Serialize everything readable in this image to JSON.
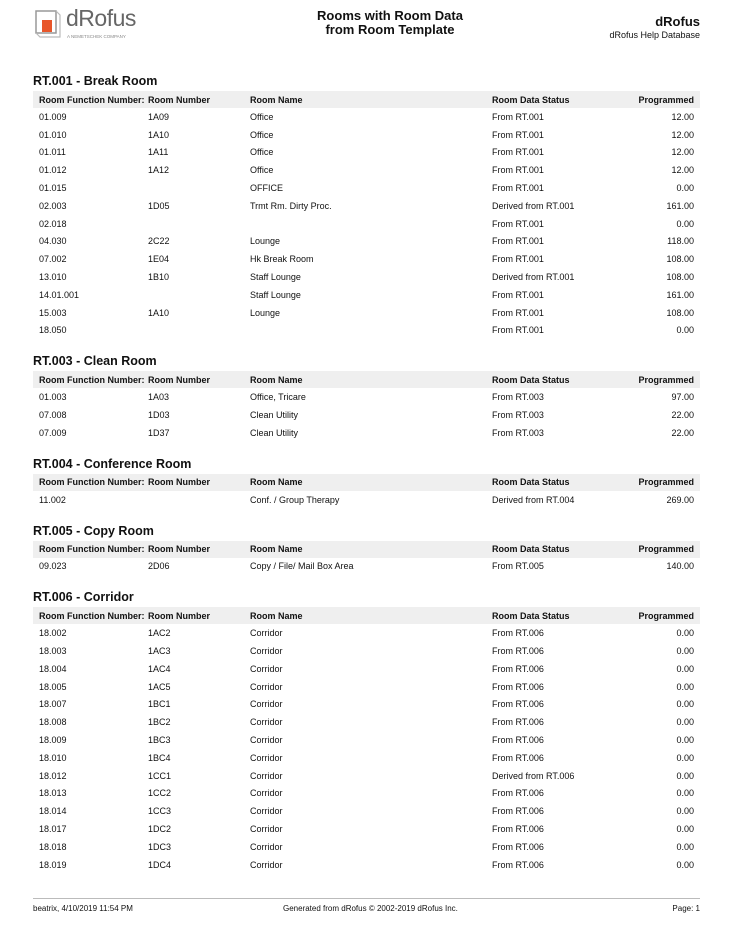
{
  "header": {
    "logo_text": "dRofus",
    "logo_sub": "A NEMETSCHEK COMPANY",
    "title_line1": "Rooms with Room Data",
    "title_line2": "from Room Template",
    "company": "dRofus",
    "database": "dRofus Help Database"
  },
  "columns": [
    "Room Function Number:",
    "Room Number",
    "Room Name",
    "Room Data Status",
    "Programmed"
  ],
  "sections": [
    {
      "title": "RT.001 - Break Room",
      "rows": [
        [
          "01.009",
          "1A09",
          "Office",
          "From RT.001",
          "12.00"
        ],
        [
          "01.010",
          "1A10",
          "Office",
          "From RT.001",
          "12.00"
        ],
        [
          "01.011",
          "1A11",
          "Office",
          "From RT.001",
          "12.00"
        ],
        [
          "01.012",
          "1A12",
          "Office",
          "From RT.001",
          "12.00"
        ],
        [
          "01.015",
          "",
          "OFFICE",
          "From RT.001",
          "0.00"
        ],
        [
          "02.003",
          "1D05",
          "Trmt Rm. Dirty Proc.",
          "Derived from RT.001",
          "161.00"
        ],
        [
          "02.018",
          "",
          "",
          "From RT.001",
          "0.00"
        ],
        [
          "04.030",
          "2C22",
          "Lounge",
          "From RT.001",
          "118.00"
        ],
        [
          "07.002",
          "1E04",
          "Hk Break Room",
          "From RT.001",
          "108.00"
        ],
        [
          "13.010",
          "1B10",
          "Staff Lounge",
          "Derived from RT.001",
          "108.00"
        ],
        [
          "14.01.001",
          "",
          "Staff Lounge",
          "From RT.001",
          "161.00"
        ],
        [
          "15.003",
          "1A10",
          "Lounge",
          "From RT.001",
          "108.00"
        ],
        [
          "18.050",
          "",
          "",
          "From RT.001",
          "0.00"
        ]
      ]
    },
    {
      "title": "RT.003 - Clean Room",
      "rows": [
        [
          "01.003",
          "1A03",
          "Office, Tricare",
          "From RT.003",
          "97.00"
        ],
        [
          "07.008",
          "1D03",
          "Clean Utility",
          "From RT.003",
          "22.00"
        ],
        [
          "07.009",
          "1D37",
          "Clean Utility",
          "From RT.003",
          "22.00"
        ]
      ]
    },
    {
      "title": "RT.004 - Conference Room",
      "rows": [
        [
          "11.002",
          "",
          "Conf. / Group Therapy",
          "Derived from RT.004",
          "269.00"
        ]
      ]
    },
    {
      "title": "RT.005 - Copy Room",
      "rows": [
        [
          "09.023",
          "2D06",
          "Copy / File/ Mail Box Area",
          "From RT.005",
          "140.00"
        ]
      ]
    },
    {
      "title": "RT.006 - Corridor",
      "rows": [
        [
          "18.002",
          "1AC2",
          "Corridor",
          "From RT.006",
          "0.00"
        ],
        [
          "18.003",
          "1AC3",
          "Corridor",
          "From RT.006",
          "0.00"
        ],
        [
          "18.004",
          "1AC4",
          "Corridor",
          "From RT.006",
          "0.00"
        ],
        [
          "18.005",
          "1AC5",
          "Corridor",
          "From RT.006",
          "0.00"
        ],
        [
          "18.007",
          "1BC1",
          "Corridor",
          "From RT.006",
          "0.00"
        ],
        [
          "18.008",
          "1BC2",
          "Corridor",
          "From RT.006",
          "0.00"
        ],
        [
          "18.009",
          "1BC3",
          "Corridor",
          "From RT.006",
          "0.00"
        ],
        [
          "18.010",
          "1BC4",
          "Corridor",
          "From RT.006",
          "0.00"
        ],
        [
          "18.012",
          "1CC1",
          "Corridor",
          "Derived from RT.006",
          "0.00"
        ],
        [
          "18.013",
          "1CC2",
          "Corridor",
          "From RT.006",
          "0.00"
        ],
        [
          "18.014",
          "1CC3",
          "Corridor",
          "From RT.006",
          "0.00"
        ],
        [
          "18.017",
          "1DC2",
          "Corridor",
          "From RT.006",
          "0.00"
        ],
        [
          "18.018",
          "1DC3",
          "Corridor",
          "From RT.006",
          "0.00"
        ],
        [
          "18.019",
          "1DC4",
          "Corridor",
          "From RT.006",
          "0.00"
        ]
      ]
    }
  ],
  "footer": {
    "user_date": "beatrix, 4/10/2019 11:54 PM",
    "generated": "Generated from dRofus © 2002-2019 dRofus Inc.",
    "page": "Page: 1"
  },
  "colors": {
    "logo_accent": "#e8562a",
    "header_bg": "#efefef"
  }
}
